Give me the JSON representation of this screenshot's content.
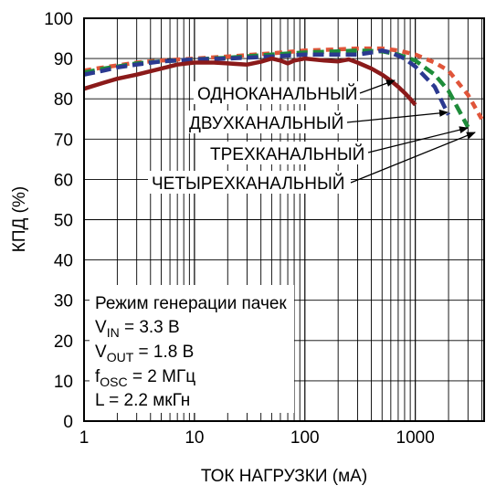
{
  "chart_data": {
    "type": "line",
    "title": "",
    "xlabel": "ТОК НАГРУЗКИ (мА)",
    "ylabel": "КПД (%)",
    "xscale": "log",
    "xlim": [
      1,
      4200
    ],
    "ylim": [
      0,
      100
    ],
    "grid": true,
    "x_ticks": [
      1,
      10,
      100,
      1000
    ],
    "x_tick_labels": [
      "1",
      "10",
      "100",
      "1000"
    ],
    "y_ticks": [
      0,
      10,
      20,
      30,
      40,
      50,
      60,
      70,
      80,
      90,
      100
    ],
    "y_tick_labels": [
      "0",
      "10",
      "20",
      "30",
      "40",
      "50",
      "60",
      "70",
      "80",
      "90",
      "100"
    ],
    "series": [
      {
        "name": "ОДНОКАНАЛЬНЫЙ",
        "color": "#8B1A1A",
        "style": "solid",
        "x": [
          1,
          1.5,
          2,
          3,
          5,
          7,
          10,
          15,
          20,
          30,
          40,
          50,
          60,
          70,
          80,
          100,
          150,
          200,
          250,
          300,
          400,
          500,
          600,
          700,
          800,
          900,
          1000
        ],
        "y": [
          82.5,
          84,
          85,
          86,
          87.5,
          88.5,
          89,
          89,
          88.8,
          88.5,
          89.2,
          90,
          89.5,
          88.8,
          89.5,
          90,
          89.5,
          89.3,
          89.8,
          89,
          87.5,
          86,
          84.5,
          83,
          81.5,
          80,
          78.5
        ]
      },
      {
        "name": "ДВУХКАНАЛЬНЫЙ",
        "color": "#2B3990",
        "style": "dashed",
        "x": [
          1,
          1.5,
          2,
          3,
          5,
          10,
          20,
          50,
          100,
          200,
          300,
          400,
          500,
          600,
          800,
          1000,
          1500,
          2000
        ],
        "y": [
          86,
          87,
          87.8,
          88.5,
          89.3,
          89.8,
          90,
          90.5,
          91,
          91,
          91,
          91.5,
          92,
          91.5,
          90,
          88,
          83,
          76
        ]
      },
      {
        "name": "ТРЕХКАНАЛЬНЫЙ",
        "color": "#1E8C3A",
        "style": "dashed",
        "x": [
          1,
          1.5,
          2,
          3,
          5,
          10,
          20,
          50,
          100,
          200,
          300,
          500,
          700,
          1000,
          1500,
          2000,
          2500,
          3000
        ],
        "y": [
          86.5,
          87.5,
          88,
          88.8,
          89.3,
          89.8,
          90.2,
          91,
          91.5,
          91.8,
          92,
          91.8,
          91,
          89.5,
          86,
          82,
          77,
          73
        ]
      },
      {
        "name": "ЧЕТЫРЕХКАНАЛЬНЫЙ",
        "color": "#E0553A",
        "style": "dotted",
        "x": [
          1,
          1.5,
          2,
          3,
          5,
          10,
          20,
          50,
          100,
          200,
          300,
          500,
          700,
          1000,
          1500,
          2000,
          3000,
          4000
        ],
        "y": [
          87,
          87.8,
          88.3,
          89,
          89.5,
          90,
          90.5,
          91.3,
          92,
          92.3,
          92.5,
          92.5,
          92,
          91,
          89,
          87,
          81,
          75
        ]
      }
    ],
    "annotations": {
      "mode": "Режим генерации пачек",
      "vin": {
        "base": "V",
        "sub": "IN",
        "rest": " = 3.3 В"
      },
      "vout": {
        "base": "V",
        "sub": "OUT",
        "rest": " = 1.8 В"
      },
      "fosc": {
        "base": "f",
        "sub": "OSC",
        "rest": " = 2 МГц"
      },
      "inductor": "L = 2.2 мкГн"
    }
  }
}
